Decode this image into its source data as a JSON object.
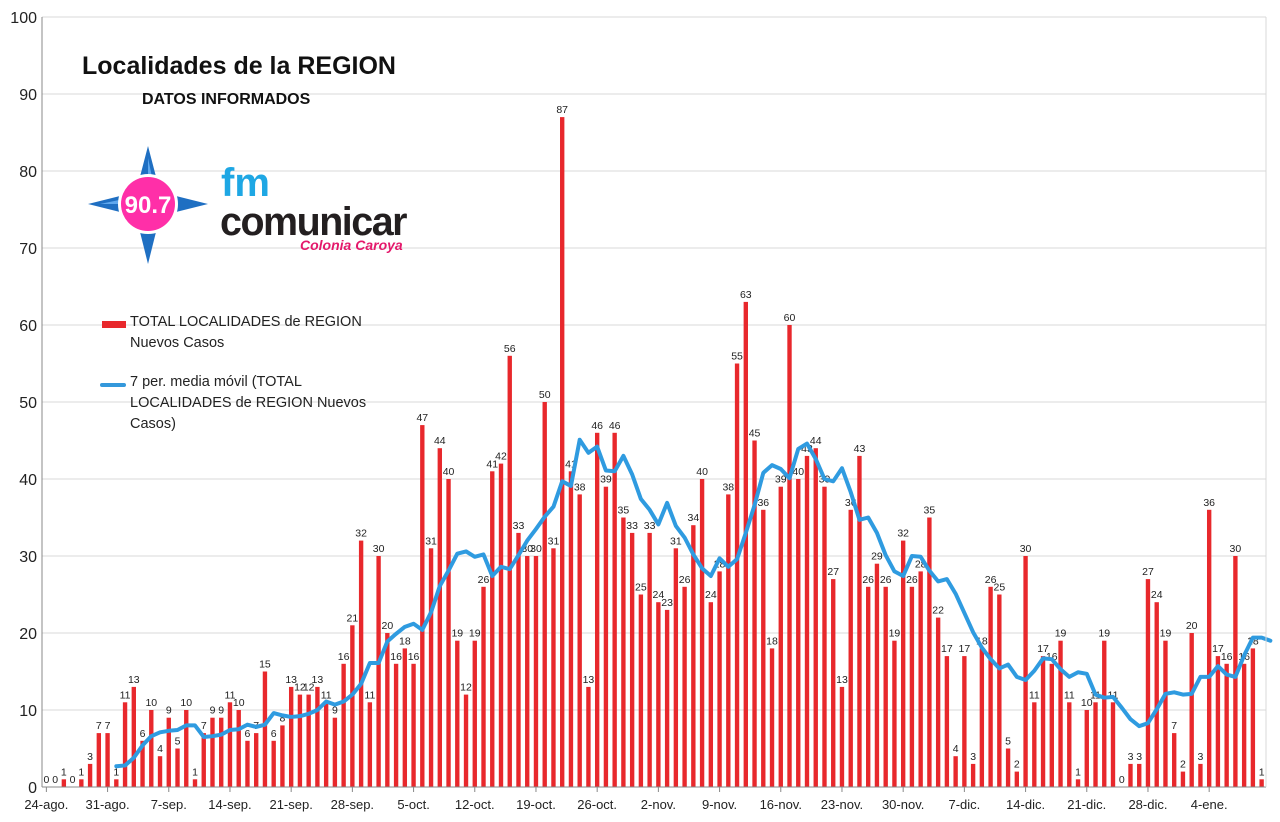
{
  "title": "Localidades de la REGION",
  "subtitle": "DATOS INFORMADOS",
  "logo": {
    "badge": "90.7",
    "line1": "fm",
    "line2": "comunicar",
    "line3": "Colonia Caroya",
    "colors": {
      "star": "#1f6fc2",
      "badge": "#ff2fa8",
      "fm": "#1ea7e4",
      "comunicar": "#231f20",
      "city": "#e4186b"
    }
  },
  "legend": {
    "bars": "TOTAL LOCALIDADES de REGION Nuevos Casos",
    "line": "7 per. media móvil (TOTAL LOCALIDADES de REGION Nuevos Casos)"
  },
  "colors": {
    "bar": "#e8282c",
    "line": "#2f9be0",
    "grid": "#d9d9d9",
    "axis": "#888888"
  },
  "chart_data": {
    "type": "bar",
    "title": "Localidades de la REGION",
    "subtitle": "DATOS INFORMADOS",
    "ylim": [
      0,
      100
    ],
    "yticks": [
      0,
      10,
      20,
      30,
      40,
      50,
      60,
      70,
      80,
      90,
      100
    ],
    "xticks": [
      "24-ago.",
      "31-ago.",
      "7-sep.",
      "14-sep.",
      "21-sep.",
      "28-sep.",
      "5-oct.",
      "12-oct.",
      "19-oct.",
      "26-oct.",
      "2-nov.",
      "9-nov.",
      "16-nov.",
      "23-nov.",
      "30-nov.",
      "7-dic.",
      "14-dic.",
      "21-dic.",
      "28-dic.",
      "4-ene."
    ],
    "xtick_step_days": 7,
    "grid": "horizontal",
    "series": [
      {
        "name": "TOTAL LOCALIDADES de REGION Nuevos Casos",
        "kind": "bar",
        "values": [
          0,
          0,
          1,
          0,
          1,
          3,
          7,
          7,
          1,
          11,
          13,
          6,
          10,
          4,
          9,
          5,
          10,
          1,
          7,
          9,
          9,
          11,
          10,
          6,
          7,
          15,
          6,
          8,
          13,
          12,
          12,
          13,
          11,
          9,
          16,
          21,
          32,
          11,
          30,
          20,
          16,
          18,
          16,
          47,
          31,
          44,
          40,
          19,
          12,
          19,
          26,
          41,
          42,
          56,
          33,
          30,
          30,
          50,
          31,
          87,
          41,
          38,
          13,
          46,
          39,
          46,
          35,
          33,
          25,
          33,
          24,
          23,
          31,
          26,
          34,
          40,
          24,
          28,
          38,
          55,
          63,
          45,
          36,
          18,
          39,
          60,
          40,
          43,
          44,
          39,
          27,
          13,
          36,
          43,
          26,
          29,
          26,
          19,
          32,
          26,
          28,
          35,
          22,
          17,
          4,
          17,
          3,
          18,
          26,
          25,
          5,
          2,
          30,
          11,
          17,
          16,
          19,
          11,
          1,
          10,
          11,
          19,
          11,
          0,
          3,
          3,
          27,
          24,
          19,
          7,
          2,
          20,
          3,
          36,
          17,
          16,
          30,
          16,
          18,
          1
        ]
      },
      {
        "name": "7 per. media móvil (TOTAL LOCALIDADES de REGION Nuevos Casos)",
        "kind": "line",
        "values": [
          null,
          null,
          null,
          null,
          null,
          null,
          null,
          null,
          2.7,
          2.8,
          3.8,
          5.4,
          6.6,
          7.1,
          7.3,
          7.4,
          8.0,
          8.0,
          6.5,
          6.6,
          6.8,
          7.4,
          7.5,
          8.1,
          7.8,
          8.1,
          9.6,
          9.3,
          9.1,
          9.2,
          9.5,
          10.0,
          11.1,
          10.7,
          11.1,
          12.0,
          13.4,
          16.1,
          16.1,
          18.9,
          19.9,
          20.8,
          21.2,
          20.4,
          22.7,
          26.1,
          28.1,
          30.3,
          30.6,
          29.9,
          30.2,
          27.4,
          28.6,
          28.3,
          30.1,
          32.0,
          33.5,
          35.1,
          36.4,
          39.7,
          39.1,
          45.1,
          43.4,
          44.2,
          41.1,
          41.0,
          43.0,
          40.6,
          37.4,
          36.0,
          34.1,
          36.9,
          33.9,
          32.4,
          30.2,
          28.4,
          27.4,
          29.7,
          28.6,
          29.6,
          33.0,
          36.6,
          40.8,
          41.8,
          41.3,
          40.1,
          43.9,
          44.6,
          42.6,
          40.0,
          39.7,
          41.4,
          38.3,
          34.7,
          35.0,
          33.0,
          30.1,
          28.0,
          27.4,
          30.0,
          29.9,
          28.1,
          26.7,
          27.0,
          25.1,
          22.6,
          20.1,
          18.1,
          16.6,
          15.4,
          15.9,
          14.3,
          13.9,
          15.1,
          16.7,
          16.6,
          15.3,
          14.3,
          14.9,
          14.7,
          12.0,
          11.6,
          11.7,
          10.3,
          8.8,
          7.9,
          8.3,
          10.1,
          12.1,
          12.3,
          12.0,
          12.1,
          14.3,
          14.3,
          15.7,
          14.6,
          14.3,
          17.1,
          19.4,
          19.4,
          19.0
        ]
      }
    ]
  }
}
